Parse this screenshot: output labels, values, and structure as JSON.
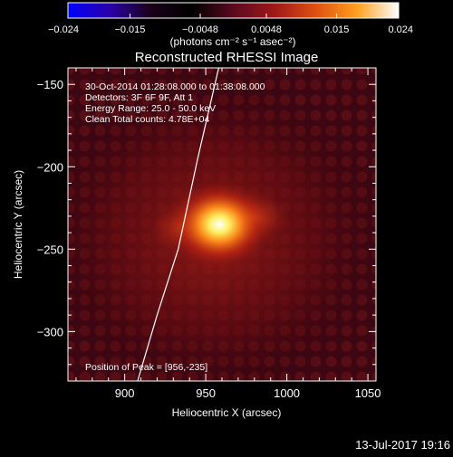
{
  "colorbar": {
    "ticks": [
      "−0.024",
      "−0.015",
      "−0.0048",
      "0.0048",
      "0.015",
      "0.024"
    ],
    "tick_values": [
      -0.024,
      -0.015,
      -0.0048,
      0.0048,
      0.015,
      0.024
    ],
    "units_label": "(photons cm⁻² s⁻¹ asec⁻²)",
    "gradient": [
      "#0000ff",
      "#2a00aa",
      "#1a0018",
      "#000000",
      "#5a0a20",
      "#a01818",
      "#e05010",
      "#ffa020",
      "#ffffff"
    ]
  },
  "chart_data": {
    "type": "heatmap",
    "title": "Reconstructed RHESSI Image",
    "xlabel": "Heliocentric X (arcsec)",
    "ylabel": "Heliocentric Y (arcsec)",
    "xlim": [
      865,
      1055
    ],
    "ylim": [
      -330,
      -140
    ],
    "x_ticks": [
      900,
      950,
      1000,
      1050
    ],
    "y_ticks": [
      -150,
      -200,
      -250,
      -300
    ],
    "peak": {
      "x": 956,
      "y": -235
    },
    "limb_curve": [
      [
        908,
        -330
      ],
      [
        920,
        -290
      ],
      [
        933,
        -250
      ],
      [
        945,
        -195
      ],
      [
        958,
        -140
      ]
    ],
    "info_lines": [
      "30-Oct-2014 01:28:08.000 to 01:38:08.000",
      "Detectors: 3F 6F 9F, Att 1",
      "Energy Range: 25.0 - 50.0 keV",
      "Clean    Total counts: 4.78E+04"
    ],
    "peak_text": "Position of Peak = [956,-235]"
  },
  "footer": {
    "date": "13-Jul-2017 19:16"
  }
}
